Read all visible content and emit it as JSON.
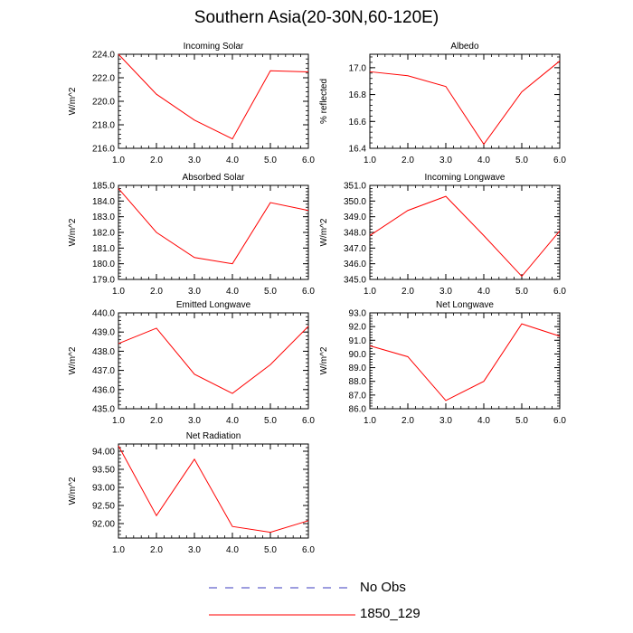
{
  "figure": {
    "title": "Southern Asia(20-30N,60-120E)",
    "series_color": "#ff0000",
    "obs_color": "#3b3bbf"
  },
  "legend": {
    "items": [
      {
        "label": "No Obs",
        "style": "dashed",
        "color": "#3b3bbf"
      },
      {
        "label": "1850_129",
        "style": "solid",
        "color": "#ff0000"
      }
    ]
  },
  "chart_data": [
    {
      "type": "line",
      "title": "Incoming Solar",
      "ylabel": "W/m^2",
      "xlim": [
        1,
        6
      ],
      "ylim": [
        216,
        224
      ],
      "yticks": [
        216,
        218,
        220,
        222,
        224
      ],
      "ytick_labels": [
        "216.0",
        "218.0",
        "220.0",
        "222.0",
        "224.0"
      ],
      "xticks": [
        1,
        2,
        3,
        4,
        5,
        6
      ],
      "xtick_labels": [
        "1.0",
        "2.0",
        "3.0",
        "4.0",
        "5.0",
        "6.0"
      ],
      "x": [
        1,
        2,
        3,
        4,
        5,
        6
      ],
      "series": [
        {
          "name": "1850_129",
          "values": [
            224.0,
            220.6,
            218.4,
            216.8,
            222.6,
            222.5
          ]
        }
      ]
    },
    {
      "type": "line",
      "title": "Albedo",
      "ylabel": "% reflected",
      "xlim": [
        1,
        6
      ],
      "ylim": [
        16.4,
        17.1
      ],
      "yticks": [
        16.4,
        16.6,
        16.8,
        17.0
      ],
      "ytick_labels": [
        "16.4",
        "16.6",
        "16.8",
        "17.0"
      ],
      "xticks": [
        1,
        2,
        3,
        4,
        5,
        6
      ],
      "xtick_labels": [
        "1.0",
        "2.0",
        "3.0",
        "4.0",
        "5.0",
        "6.0"
      ],
      "x": [
        1,
        2,
        3,
        4,
        5,
        6
      ],
      "series": [
        {
          "name": "1850_129",
          "values": [
            16.97,
            16.94,
            16.86,
            16.43,
            16.82,
            17.05
          ]
        }
      ]
    },
    {
      "type": "line",
      "title": "Absorbed Solar",
      "ylabel": "W/m^2",
      "xlim": [
        1,
        6
      ],
      "ylim": [
        179,
        185
      ],
      "yticks": [
        179,
        180,
        181,
        182,
        183,
        184,
        185
      ],
      "ytick_labels": [
        "179.0",
        "180.0",
        "181.0",
        "182.0",
        "183.0",
        "184.0",
        "185.0"
      ],
      "xticks": [
        1,
        2,
        3,
        4,
        5,
        6
      ],
      "xtick_labels": [
        "1.0",
        "2.0",
        "3.0",
        "4.0",
        "5.0",
        "6.0"
      ],
      "x": [
        1,
        2,
        3,
        4,
        5,
        6
      ],
      "series": [
        {
          "name": "1850_129",
          "values": [
            184.8,
            182.0,
            180.4,
            180.0,
            183.9,
            183.4
          ]
        }
      ]
    },
    {
      "type": "line",
      "title": "Incoming Longwave",
      "ylabel": "W/m^2",
      "xlim": [
        1,
        6
      ],
      "ylim": [
        345,
        351
      ],
      "yticks": [
        345,
        346,
        347,
        348,
        349,
        350,
        351
      ],
      "ytick_labels": [
        "345.0",
        "346.0",
        "347.0",
        "348.0",
        "349.0",
        "350.0",
        "351.0"
      ],
      "xticks": [
        1,
        2,
        3,
        4,
        5,
        6
      ],
      "xtick_labels": [
        "1.0",
        "2.0",
        "3.0",
        "4.0",
        "5.0",
        "6.0"
      ],
      "x": [
        1,
        2,
        3,
        4,
        5,
        6
      ],
      "series": [
        {
          "name": "1850_129",
          "values": [
            347.8,
            349.4,
            350.3,
            347.8,
            345.2,
            348.1
          ]
        }
      ]
    },
    {
      "type": "line",
      "title": "Emitted Longwave",
      "ylabel": "W/m^2",
      "xlim": [
        1,
        6
      ],
      "ylim": [
        435,
        440
      ],
      "yticks": [
        435,
        436,
        437,
        438,
        439,
        440
      ],
      "ytick_labels": [
        "435.0",
        "436.0",
        "437.0",
        "438.0",
        "439.0",
        "440.0"
      ],
      "xticks": [
        1,
        2,
        3,
        4,
        5,
        6
      ],
      "xtick_labels": [
        "1.0",
        "2.0",
        "3.0",
        "4.0",
        "5.0",
        "6.0"
      ],
      "x": [
        1,
        2,
        3,
        4,
        5,
        6
      ],
      "series": [
        {
          "name": "1850_129",
          "values": [
            438.4,
            439.2,
            436.8,
            435.8,
            437.3,
            439.3
          ]
        }
      ]
    },
    {
      "type": "line",
      "title": "Net Longwave",
      "ylabel": "W/m^2",
      "xlim": [
        1,
        6
      ],
      "ylim": [
        86,
        93
      ],
      "yticks": [
        86,
        87,
        88,
        89,
        90,
        91,
        92,
        93
      ],
      "ytick_labels": [
        "86.0",
        "87.0",
        "88.0",
        "89.0",
        "90.0",
        "91.0",
        "92.0",
        "93.0"
      ],
      "xticks": [
        1,
        2,
        3,
        4,
        5,
        6
      ],
      "xtick_labels": [
        "1.0",
        "2.0",
        "3.0",
        "4.0",
        "5.0",
        "6.0"
      ],
      "x": [
        1,
        2,
        3,
        4,
        5,
        6
      ],
      "series": [
        {
          "name": "1850_129",
          "values": [
            90.6,
            89.8,
            86.6,
            88.0,
            92.2,
            91.3
          ]
        }
      ]
    },
    {
      "type": "line",
      "title": "Net Radiation",
      "ylabel": "W/m^2",
      "xlim": [
        1,
        6
      ],
      "ylim": [
        91.6,
        94.2
      ],
      "yticks": [
        92,
        92.5,
        93,
        93.5,
        94
      ],
      "ytick_labels": [
        "92.00",
        "92.50",
        "93.00",
        "93.50",
        "94.00"
      ],
      "xticks": [
        1,
        2,
        3,
        4,
        5,
        6
      ],
      "xtick_labels": [
        "1.0",
        "2.0",
        "3.0",
        "4.0",
        "5.0",
        "6.0"
      ],
      "x": [
        1,
        2,
        3,
        4,
        5,
        6
      ],
      "series": [
        {
          "name": "1850_129",
          "values": [
            94.15,
            92.22,
            93.78,
            91.92,
            91.76,
            92.08
          ]
        }
      ]
    }
  ]
}
